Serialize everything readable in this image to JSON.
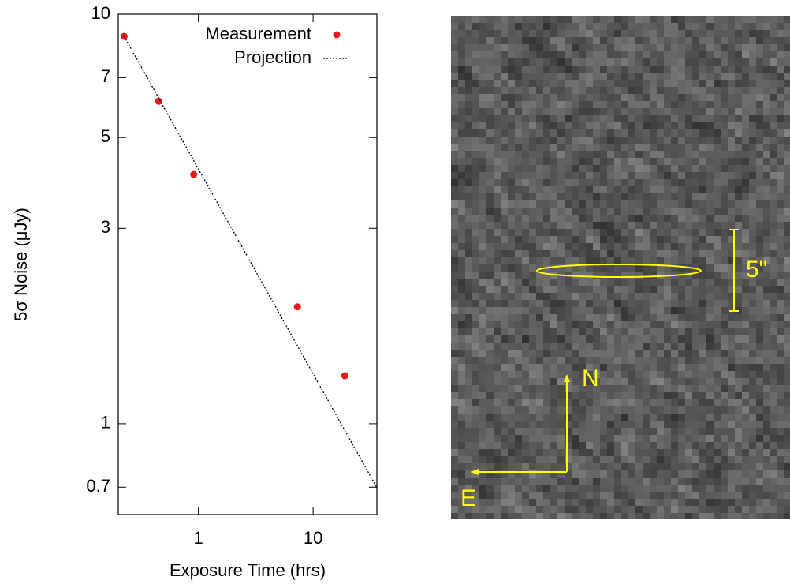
{
  "chart_data": {
    "type": "scatter",
    "xlabel": "Exposure Time (hrs)",
    "ylabel": "5σ Noise (μJy)",
    "xscale": "log",
    "yscale": "log",
    "xlim": [
      0.2,
      36
    ],
    "ylim": [
      0.6,
      10
    ],
    "xticks": [
      1,
      10
    ],
    "yticks": [
      0.7,
      1,
      3,
      5,
      7,
      10
    ],
    "legend": "upper right",
    "series": [
      {
        "name": "Measurement",
        "color": "#e41a1c",
        "mode": "markers",
        "x": [
          0.225,
          0.45,
          0.91,
          7.3,
          18.9
        ],
        "values": [
          8.83,
          6.13,
          4.06,
          1.93,
          1.31
        ]
      },
      {
        "name": "Projection",
        "color": "#000000",
        "mode": "dotted-line",
        "x": [
          0.225,
          36
        ],
        "values": [
          8.83,
          0.698
        ]
      }
    ]
  },
  "image": {
    "scale_label": "5\"",
    "north": "N",
    "east": "E"
  }
}
